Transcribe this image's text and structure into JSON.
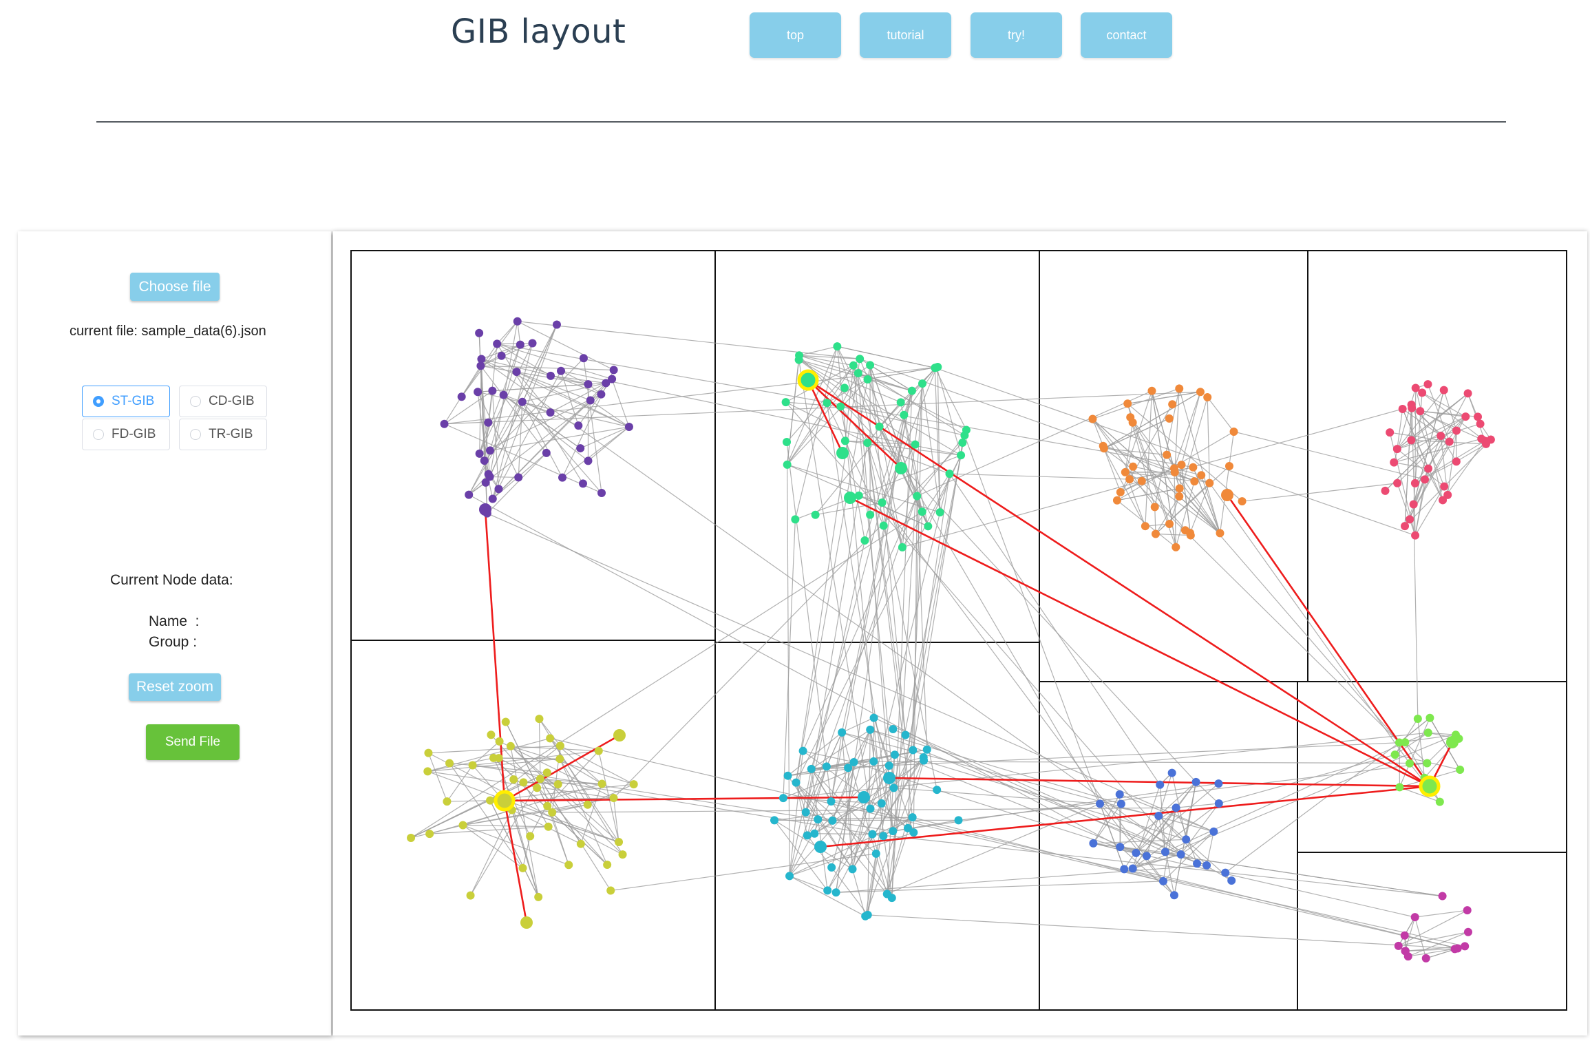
{
  "header": {
    "title": "GIB layout",
    "nav": [
      "top",
      "tutorial",
      "try!",
      "contact"
    ]
  },
  "sidebar": {
    "choose_file": "Choose file",
    "current_file": "current file: sample_data(6).json",
    "layouts": [
      "ST-GIB",
      "CD-GIB",
      "FD-GIB",
      "TR-GIB"
    ],
    "selected_layout": "ST-GIB",
    "send_file": "Send File",
    "node_data_title": "Current Node data:",
    "name_label": "Name  :",
    "group_label": "Group :",
    "reset_zoom": "Reset zoom"
  },
  "graph": {
    "colors": {
      "purple": "#6a3fa8",
      "green": "#2ee08a",
      "orange": "#f0893a",
      "pink": "#ec4a72",
      "olive": "#c9cf3a",
      "cyan": "#25b6cd",
      "blue": "#4a72d8",
      "lime": "#7ee84e",
      "magenta": "#c23aa6",
      "highlight": "#ffee00",
      "selected_edge": "#ee1c1c",
      "edge": "#9d9d9d",
      "box": "#111111"
    },
    "groups": [
      {
        "color": "purple",
        "count": 46
      },
      {
        "color": "green",
        "count": 42
      },
      {
        "color": "orange",
        "count": 40
      },
      {
        "color": "pink",
        "count": 36
      },
      {
        "color": "olive",
        "count": 44
      },
      {
        "color": "cyan",
        "count": 48
      },
      {
        "color": "blue",
        "count": 26
      },
      {
        "color": "lime",
        "count": 14
      },
      {
        "color": "magenta",
        "count": 13
      }
    ]
  }
}
